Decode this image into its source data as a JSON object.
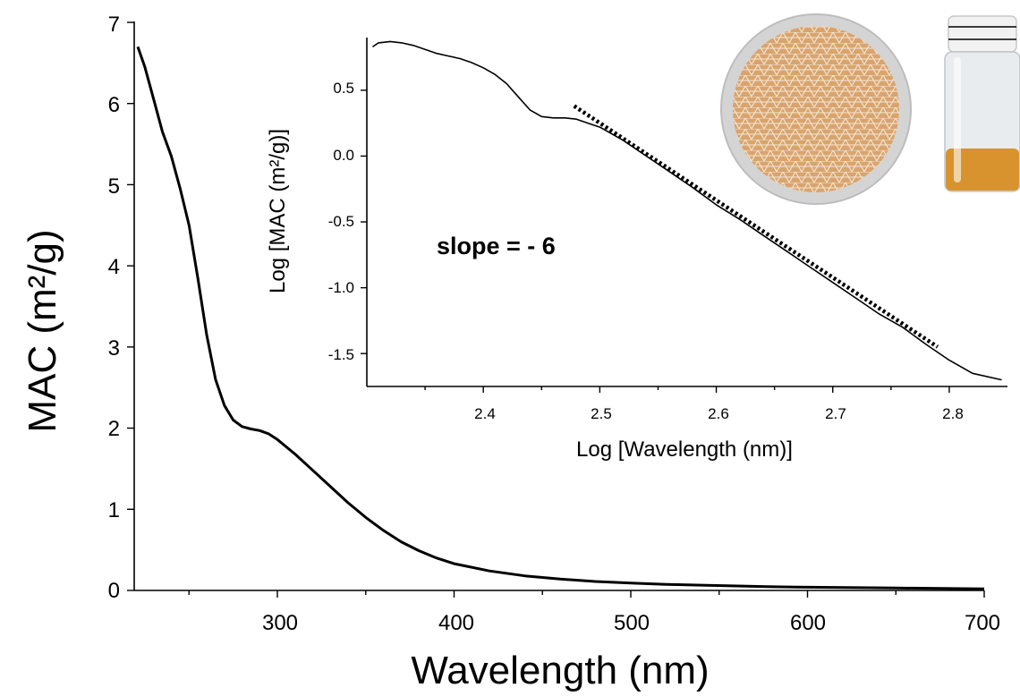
{
  "chart_data": [
    {
      "type": "line",
      "title": "",
      "xlabel": "Wavelength (nm)",
      "ylabel": "MAC (m²/g)",
      "xlim": [
        220,
        700
      ],
      "ylim": [
        0,
        7
      ],
      "x_ticks": [
        "300",
        "400",
        "500",
        "600",
        "700"
      ],
      "y_ticks": [
        "0",
        "1",
        "2",
        "3",
        "4",
        "5",
        "6",
        "7"
      ],
      "series": [
        {
          "x": [
            221,
            225,
            230,
            235,
            240,
            245,
            250,
            255,
            260,
            265,
            270,
            275,
            280,
            285,
            290,
            295,
            300,
            310,
            320,
            330,
            340,
            350,
            360,
            370,
            380,
            390,
            400,
            420,
            440,
            460,
            480,
            500,
            520,
            540,
            560,
            580,
            600,
            650,
            700
          ],
          "y": [
            6.7,
            6.45,
            6.05,
            5.65,
            5.35,
            4.95,
            4.5,
            3.85,
            3.15,
            2.6,
            2.28,
            2.1,
            2.02,
            1.99,
            1.97,
            1.93,
            1.86,
            1.68,
            1.48,
            1.28,
            1.08,
            0.9,
            0.74,
            0.6,
            0.49,
            0.4,
            0.33,
            0.24,
            0.18,
            0.14,
            0.11,
            0.09,
            0.075,
            0.065,
            0.055,
            0.045,
            0.04,
            0.03,
            0.02
          ],
          "color": "#000000"
        }
      ]
    },
    {
      "type": "line",
      "title": "",
      "xlabel": "Log [Wavelength (nm)]",
      "ylabel": "Log [MAC (m²/g)]",
      "xlim": [
        2.3,
        2.85
      ],
      "ylim": [
        -1.75,
        0.9
      ],
      "x_ticks": [
        "2.4",
        "2.5",
        "2.6",
        "2.7",
        "2.8"
      ],
      "y_ticks": [
        "0.5",
        "0.0",
        "-0.5",
        "-1.0",
        "-1.5"
      ],
      "annotation": "slope = - 6",
      "series": [
        {
          "x": [
            2.305,
            2.31,
            2.32,
            2.33,
            2.34,
            2.35,
            2.36,
            2.37,
            2.38,
            2.39,
            2.4,
            2.41,
            2.42,
            2.43,
            2.44,
            2.45,
            2.46,
            2.47,
            2.48,
            2.49,
            2.5,
            2.52,
            2.54,
            2.56,
            2.58,
            2.6,
            2.62,
            2.64,
            2.66,
            2.68,
            2.7,
            2.72,
            2.74,
            2.76,
            2.78,
            2.8,
            2.82,
            2.845
          ],
          "y": [
            0.83,
            0.86,
            0.87,
            0.86,
            0.84,
            0.81,
            0.78,
            0.76,
            0.74,
            0.71,
            0.67,
            0.62,
            0.55,
            0.45,
            0.35,
            0.3,
            0.29,
            0.29,
            0.28,
            0.25,
            0.22,
            0.12,
            0.0,
            -0.12,
            -0.24,
            -0.37,
            -0.48,
            -0.6,
            -0.72,
            -0.84,
            -0.96,
            -1.08,
            -1.2,
            -1.3,
            -1.43,
            -1.55,
            -1.65,
            -1.7
          ],
          "color": "#000000"
        },
        {
          "style": "dotted-fit",
          "x": [
            2.478,
            2.79
          ],
          "y": [
            0.38,
            -1.45
          ],
          "color": "#000000"
        }
      ]
    }
  ],
  "images": {
    "filter_photo": "circular filter with orange triangular mesh pattern",
    "vial_photo": "glass vial with white cap containing amber liquid",
    "filter_color": "#d9a46c",
    "filter_rim_color": "#cfcfcf",
    "liquid_color": "#d68a1a"
  }
}
